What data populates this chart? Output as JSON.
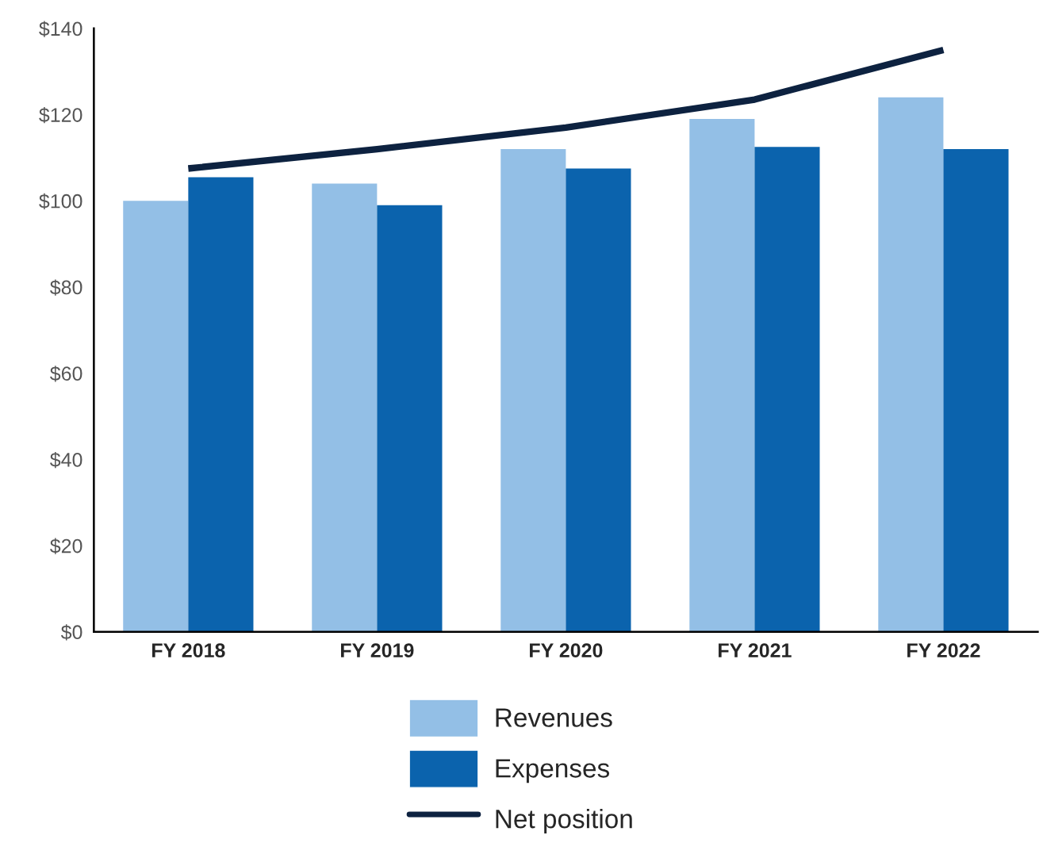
{
  "chart_data": {
    "type": "bar",
    "categories": [
      "FY 2018",
      "FY 2019",
      "FY 2020",
      "FY 2021",
      "FY 2022"
    ],
    "series": [
      {
        "name": "Revenues",
        "color": "#93bfe6",
        "values": [
          100,
          104,
          112,
          119,
          124
        ]
      },
      {
        "name": "Expenses",
        "color": "#0b63ad",
        "values": [
          105.5,
          99,
          107.5,
          112.5,
          112
        ]
      },
      {
        "name": "Net position",
        "type": "line",
        "color": "#0d2240",
        "values": [
          107.5,
          112,
          117,
          123.5,
          135
        ]
      }
    ],
    "ylim": [
      0,
      140
    ],
    "yticks": [
      {
        "value": 0,
        "label": "$0"
      },
      {
        "value": 20,
        "label": "$20"
      },
      {
        "value": 40,
        "label": "$40"
      },
      {
        "value": 60,
        "label": "$60"
      },
      {
        "value": 80,
        "label": "$80"
      },
      {
        "value": 100,
        "label": "$100"
      },
      {
        "value": 120,
        "label": "$120"
      },
      {
        "value": 140,
        "label": "$140"
      }
    ],
    "grid": false,
    "legend": "bottom"
  }
}
